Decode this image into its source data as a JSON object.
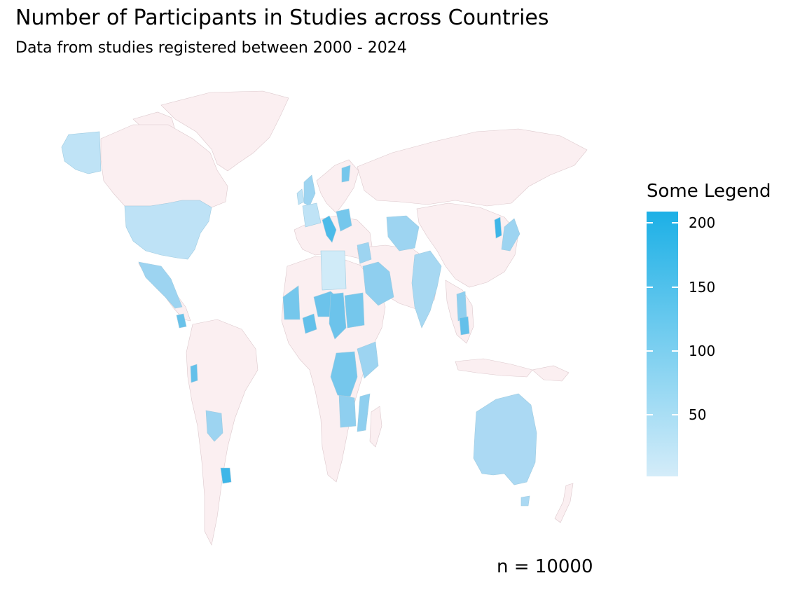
{
  "title": "Number of Participants in Studies across Countries",
  "subtitle": "Data from studies registered between 2000 - 2024",
  "caption": "n = 10000",
  "colors": {
    "background": "#ffffff",
    "no_data": "#fbeff1",
    "border": "#dcc8cc",
    "scale_low": "#d4ecf9",
    "scale_high": "#1cb0e6"
  },
  "legend": {
    "title": "Some Legend",
    "min": 1,
    "max": 208,
    "ticks": [
      "50",
      "100",
      "150",
      "200"
    ]
  },
  "chart_data": {
    "type": "choropleth",
    "title": "Number of Participants in Studies across Countries",
    "subtitle": "Data from studies registered between 2000 - 2024",
    "caption": "n = 10000",
    "legend_title": "Some Legend",
    "scale_range": [
      1,
      208
    ],
    "regions": [
      {
        "name": "USA",
        "value": 45
      },
      {
        "name": "Alaska",
        "value": 40
      },
      {
        "name": "Mexico",
        "value": 85
      },
      {
        "name": "Nicaragua",
        "value": 135
      },
      {
        "name": "Ecuador",
        "value": 140
      },
      {
        "name": "Paraguay",
        "value": 80
      },
      {
        "name": "Uruguay",
        "value": 170
      },
      {
        "name": "Ireland",
        "value": 60
      },
      {
        "name": "UK",
        "value": 70
      },
      {
        "name": "France",
        "value": 50
      },
      {
        "name": "Italy",
        "value": 150
      },
      {
        "name": "Hungary",
        "value": 120
      },
      {
        "name": "Finland",
        "value": 110
      },
      {
        "name": "Turkey",
        "value": 85
      },
      {
        "name": "Libya",
        "value": 25
      },
      {
        "name": "Mali",
        "value": 120
      },
      {
        "name": "Niger",
        "value": 115
      },
      {
        "name": "Nigeria",
        "value": 130
      },
      {
        "name": "Chad",
        "value": 125
      },
      {
        "name": "Sudan",
        "value": 120
      },
      {
        "name": "Saudi Arabia",
        "value": 90
      },
      {
        "name": "DR Congo",
        "value": 120
      },
      {
        "name": "Zambia",
        "value": 110
      },
      {
        "name": "Kenya",
        "value": 85
      },
      {
        "name": "India",
        "value": 60
      },
      {
        "name": "Kazakhstan",
        "value": 70
      },
      {
        "name": "Korea",
        "value": 160
      },
      {
        "name": "Japan",
        "value": 65
      },
      {
        "name": "Thailand",
        "value": 95
      },
      {
        "name": "Australia",
        "value": 70
      }
    ]
  }
}
